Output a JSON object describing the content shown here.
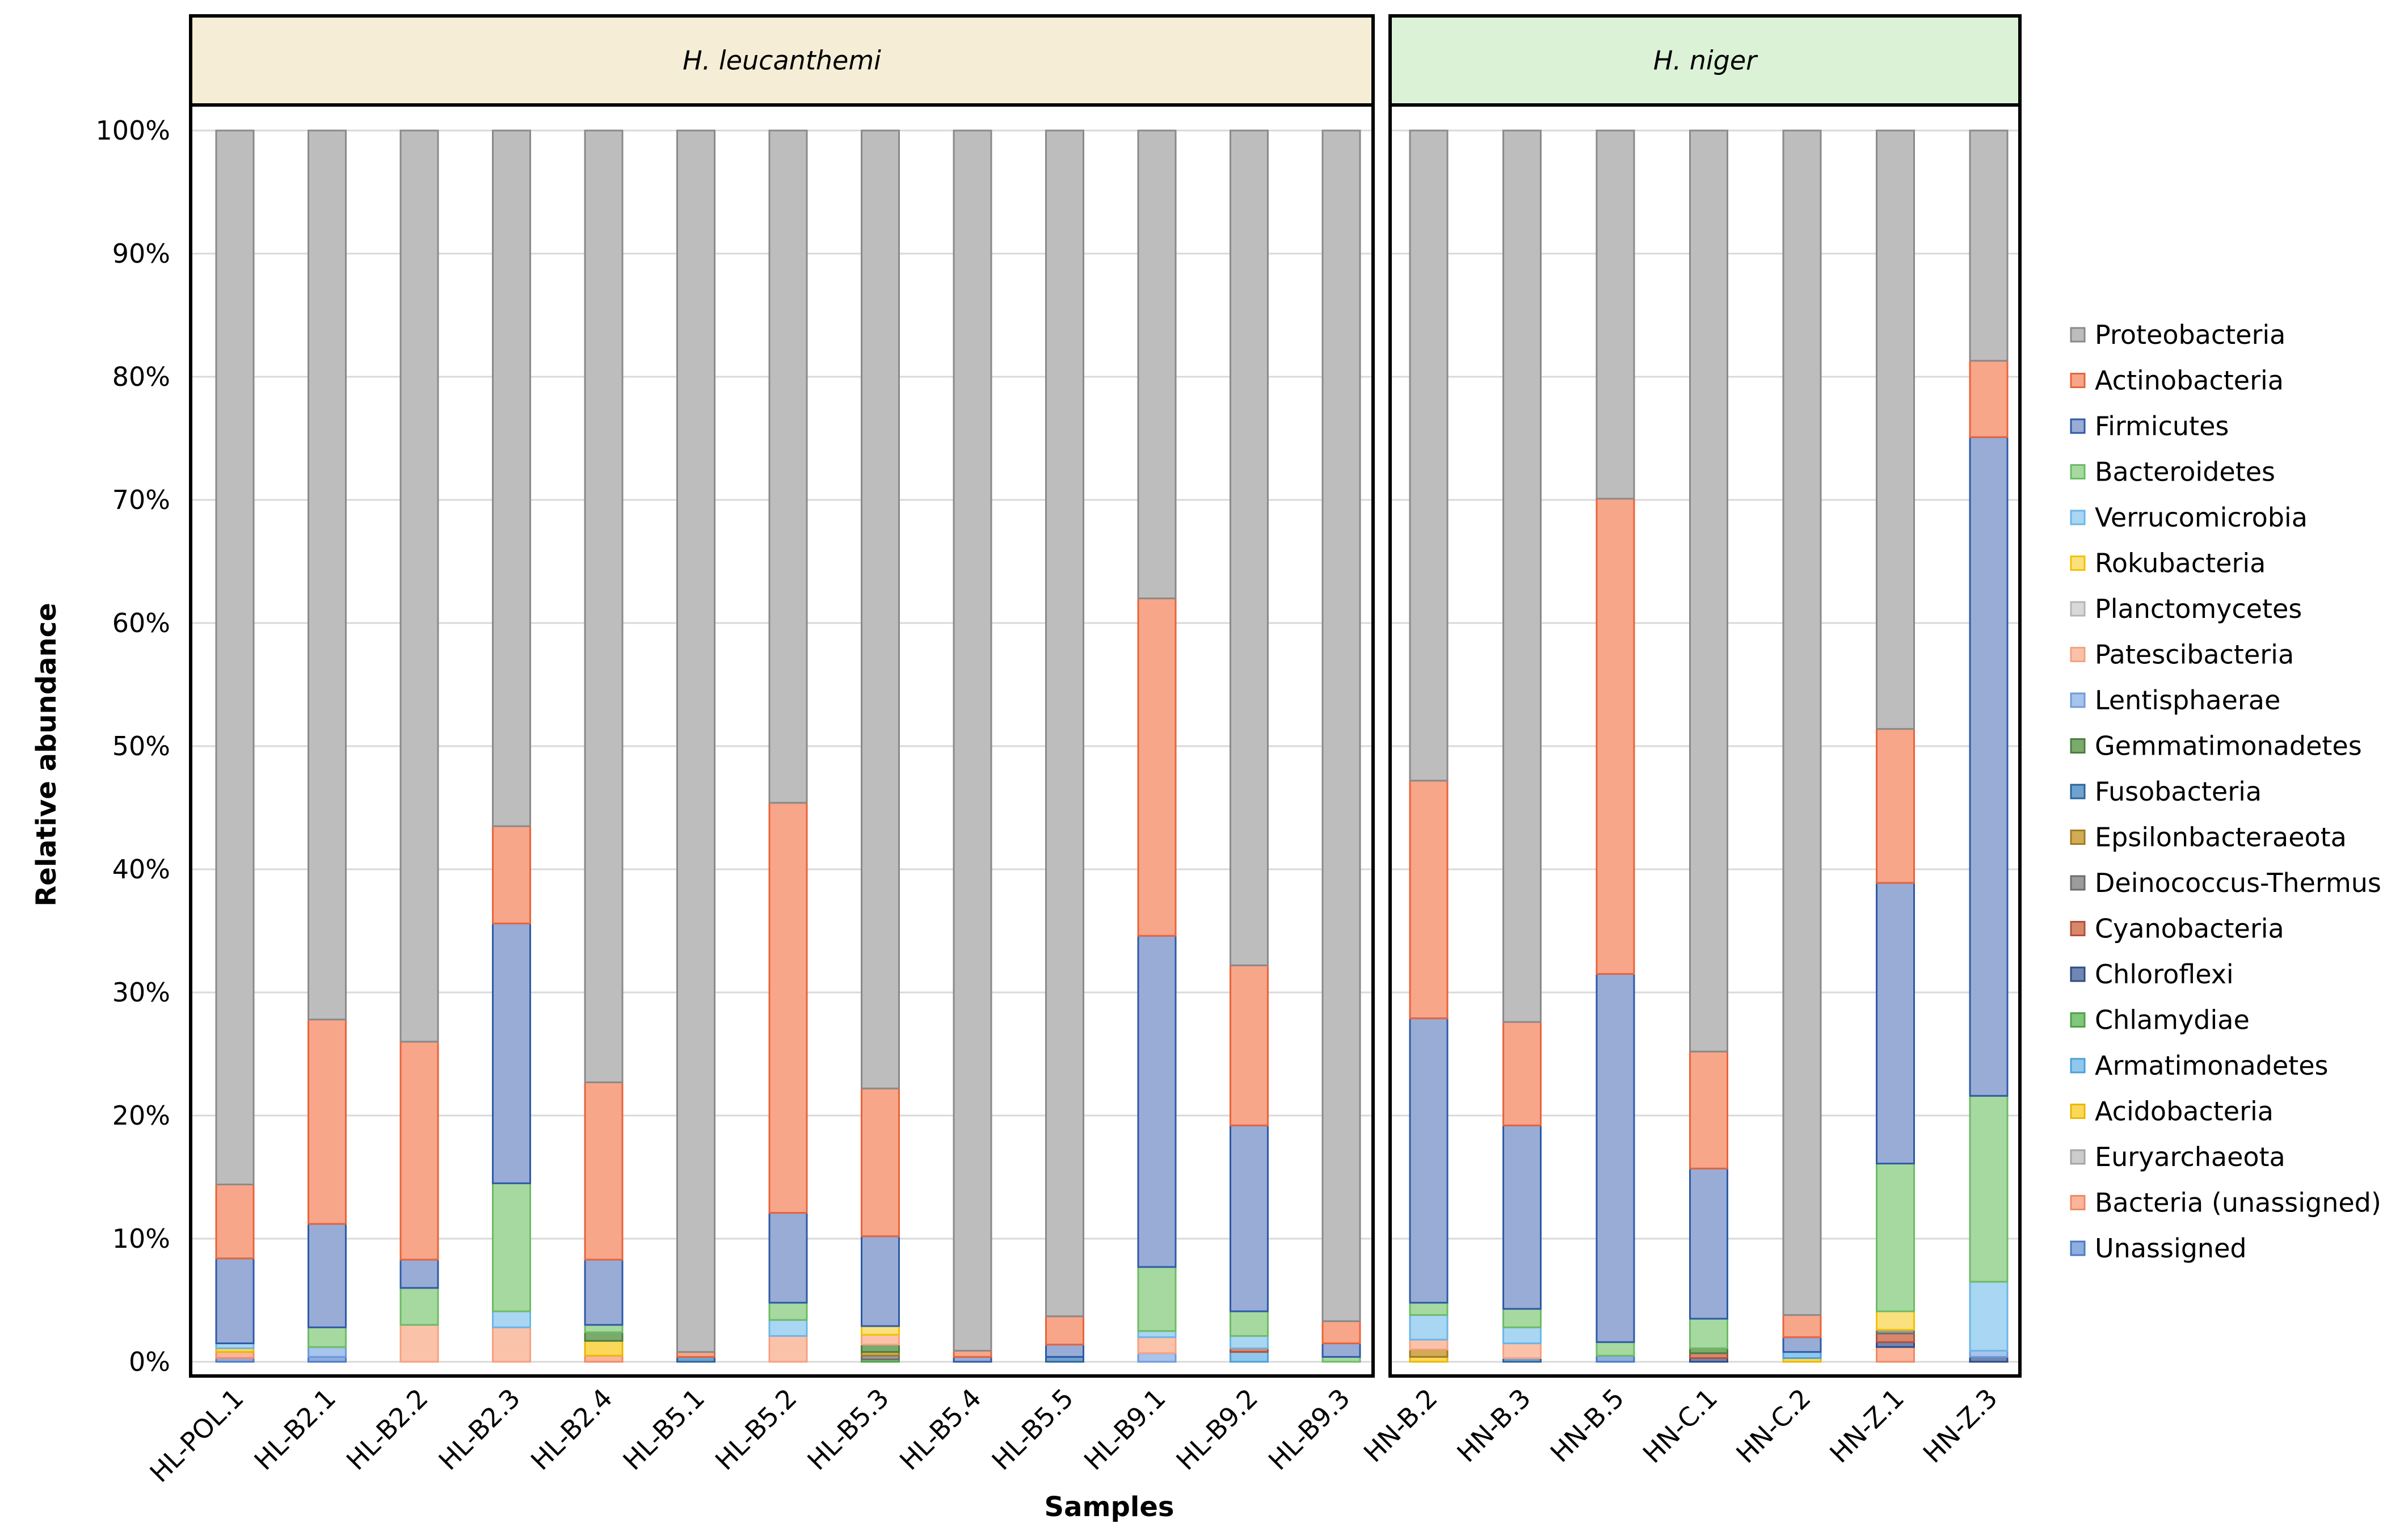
{
  "chart_data": {
    "type": "bar",
    "stacked": true,
    "ylabel": "Relative abundance",
    "xlabel": "Samples",
    "ylim": [
      0,
      100
    ],
    "yticks": [
      "0%",
      "10%",
      "20%",
      "30%",
      "40%",
      "50%",
      "60%",
      "70%",
      "80%",
      "90%",
      "100%"
    ],
    "legend_position": "right",
    "taxa": [
      {
        "name": "Proteobacteria",
        "fill": "#bdbdbd",
        "stroke": "#8a8a8a"
      },
      {
        "name": "Actinobacteria",
        "fill": "#f7a68a",
        "stroke": "#e8643a"
      },
      {
        "name": "Firmicutes",
        "fill": "#98acd6",
        "stroke": "#2f5aa6"
      },
      {
        "name": "Bacteroidetes",
        "fill": "#a6d9a0",
        "stroke": "#6dbb65"
      },
      {
        "name": "Verrucomicrobia",
        "fill": "#a9d6f3",
        "stroke": "#6cb6e6"
      },
      {
        "name": "Rokubacteria",
        "fill": "#fbe07e",
        "stroke": "#f2c200"
      },
      {
        "name": "Planctomycetes",
        "fill": "#d9d9d9",
        "stroke": "#b5b5b5"
      },
      {
        "name": "Patescibacteria",
        "fill": "#fbc2aa",
        "stroke": "#f5a183"
      },
      {
        "name": "Lentisphaerae",
        "fill": "#a7c4ec",
        "stroke": "#6f9bd9"
      },
      {
        "name": "Gemmatimonadetes",
        "fill": "#7bab6c",
        "stroke": "#4c7d3f"
      },
      {
        "name": "Fusobacteria",
        "fill": "#6fa3cf",
        "stroke": "#2c6399"
      },
      {
        "name": "Epsilonbacteraeota",
        "fill": "#d2ab55",
        "stroke": "#9f7a25"
      },
      {
        "name": "Deinococcus-Thermus",
        "fill": "#9c9c9c",
        "stroke": "#6d6d6d"
      },
      {
        "name": "Cyanobacteria",
        "fill": "#d9876c",
        "stroke": "#b2503a"
      },
      {
        "name": "Chloroflexi",
        "fill": "#6f87b5",
        "stroke": "#2f4b85"
      },
      {
        "name": "Chlamydiae",
        "fill": "#7fc77a",
        "stroke": "#4ea347"
      },
      {
        "name": "Armatimonadetes",
        "fill": "#8fc8ee",
        "stroke": "#4f9fd6"
      },
      {
        "name": "Acidobacteria",
        "fill": "#fcd85a",
        "stroke": "#e8b900"
      },
      {
        "name": "Euryarchaeota",
        "fill": "#cccccc",
        "stroke": "#a5a5a5"
      },
      {
        "name": "Bacteria (unassigned)",
        "fill": "#fbb59b",
        "stroke": "#f08a66"
      },
      {
        "name": "Unassigned",
        "fill": "#8eaee0",
        "stroke": "#4d79c4"
      }
    ],
    "panels": [
      {
        "label": "H. leucanthemi",
        "strip_color": "#f5edd6",
        "samples": [
          {
            "name": "HL-POL.1",
            "values": {
              "Unassigned": 0.3,
              "Acidobacteria": 0.3,
              "Bacteria (unassigned)": 0.5,
              "Verrucomicrobia": 0.4,
              "Firmicutes": 6.9,
              "Actinobacteria": 6.0,
              "Proteobacteria": 85.6
            }
          },
          {
            "name": "HL-B2.1",
            "values": {
              "Unassigned": 0.4,
              "Lentisphaerae": 0.8,
              "Bacteroidetes": 1.6,
              "Firmicutes": 8.4,
              "Actinobacteria": 16.6,
              "Proteobacteria": 72.2
            }
          },
          {
            "name": "HL-B2.2",
            "values": {
              "Patescibacteria": 3.0,
              "Bacteroidetes": 3.0,
              "Firmicutes": 2.3,
              "Actinobacteria": 17.7,
              "Proteobacteria": 74.0
            }
          },
          {
            "name": "HL-B2.3",
            "values": {
              "Patescibacteria": 2.8,
              "Verrucomicrobia": 1.3,
              "Bacteroidetes": 10.4,
              "Firmicutes": 21.1,
              "Actinobacteria": 7.9,
              "Proteobacteria": 56.5
            }
          },
          {
            "name": "HL-B2.4",
            "values": {
              "Acidobacteria": 1.2,
              "Bacteria (unassigned)": 0.5,
              "Gemmatimonadetes": 0.7,
              "Bacteroidetes": 0.6,
              "Firmicutes": 5.3,
              "Actinobacteria": 14.4,
              "Proteobacteria": 77.3
            }
          },
          {
            "name": "HL-B5.1",
            "values": {
              "Fusobacteria": 0.4,
              "Actinobacteria": 0.4,
              "Proteobacteria": 99.2
            }
          },
          {
            "name": "HL-B5.2",
            "values": {
              "Patescibacteria": 2.1,
              "Verrucomicrobia": 1.3,
              "Bacteroidetes": 1.4,
              "Firmicutes": 7.3,
              "Actinobacteria": 33.3,
              "Proteobacteria": 54.6
            }
          },
          {
            "name": "HL-B5.3",
            "values": {
              "Patescibacteria": 0.8,
              "Rokubacteria": 0.7,
              "Gemmatimonadetes": 0.6,
              "Epsilonbacteraeota": 0.3,
              "Deinococcus-Thermus": 0.3,
              "Chlamydiae": 0.2,
              "Firmicutes": 7.3,
              "Actinobacteria": 12.0,
              "Proteobacteria": 77.8
            }
          },
          {
            "name": "HL-B5.4",
            "values": {
              "Firmicutes": 0.4,
              "Actinobacteria": 0.5,
              "Proteobacteria": 99.1
            }
          },
          {
            "name": "HL-B5.5",
            "values": {
              "Fusobacteria": 0.4,
              "Firmicutes": 1.0,
              "Actinobacteria": 2.3,
              "Proteobacteria": 96.3
            }
          },
          {
            "name": "HL-B9.1",
            "values": {
              "Patescibacteria": 1.3,
              "Lentisphaerae": 0.7,
              "Verrucomicrobia": 0.5,
              "Bacteroidetes": 5.2,
              "Firmicutes": 26.9,
              "Actinobacteria": 27.4,
              "Proteobacteria": 38.0
            }
          },
          {
            "name": "HL-B9.2",
            "values": {
              "Cyanobacteria": 0.3,
              "Armatimonadetes": 0.8,
              "Verrucomicrobia": 1.0,
              "Bacteroidetes": 2.0,
              "Firmicutes": 15.1,
              "Actinobacteria": 13.0,
              "Proteobacteria": 67.8
            }
          },
          {
            "name": "HL-B9.3",
            "values": {
              "Bacteroidetes": 0.4,
              "Firmicutes": 1.1,
              "Actinobacteria": 1.8,
              "Proteobacteria": 96.7
            }
          }
        ]
      },
      {
        "label": "H. niger",
        "strip_color": "#dcf2d7",
        "samples": [
          {
            "name": "HN-B.2",
            "values": {
              "Acidobacteria": 0.4,
              "Epsilonbacteraeota": 0.6,
              "Patescibacteria": 0.8,
              "Verrucomicrobia": 2.0,
              "Bacteroidetes": 1.0,
              "Firmicutes": 23.1,
              "Actinobacteria": 19.3,
              "Proteobacteria": 52.8
            }
          },
          {
            "name": "HN-B.3",
            "values": {
              "Fusobacteria": 0.3,
              "Patescibacteria": 1.2,
              "Verrucomicrobia": 1.3,
              "Bacteroidetes": 1.5,
              "Firmicutes": 14.9,
              "Actinobacteria": 8.4,
              "Proteobacteria": 72.4
            }
          },
          {
            "name": "HN-B.5",
            "values": {
              "Unassigned": 0.5,
              "Bacteroidetes": 1.1,
              "Firmicutes": 29.9,
              "Actinobacteria": 38.6,
              "Proteobacteria": 29.9
            }
          },
          {
            "name": "HN-C.1",
            "values": {
              "Cyanobacteria": 0.4,
              "Chloroflexi": 0.3,
              "Gemmatimonadetes": 0.4,
              "Bacteroidetes": 2.4,
              "Firmicutes": 12.2,
              "Actinobacteria": 9.5,
              "Proteobacteria": 74.8
            }
          },
          {
            "name": "HN-C.2",
            "values": {
              "Acidobacteria": 0.3,
              "Armatimonadetes": 0.5,
              "Firmicutes": 1.2,
              "Actinobacteria": 1.8,
              "Proteobacteria": 96.2
            }
          },
          {
            "name": "HN-Z.1",
            "values": {
              "Rokubacteria": 1.5,
              "Chloroflexi": 0.4,
              "Cyanobacteria": 0.7,
              "Deinococcus-Thermus": 0.3,
              "Bacteria (unassigned)": 1.2,
              "Bacteroidetes": 12.0,
              "Firmicutes": 22.8,
              "Actinobacteria": 12.5,
              "Proteobacteria": 48.6
            }
          },
          {
            "name": "HN-Z.3",
            "values": {
              "Chloroflexi": 0.4,
              "Lentisphaerae": 0.5,
              "Verrucomicrobia": 5.6,
              "Bacteroidetes": 15.1,
              "Firmicutes": 53.5,
              "Actinobacteria": 6.2,
              "Proteobacteria": 18.7
            }
          }
        ]
      }
    ]
  }
}
